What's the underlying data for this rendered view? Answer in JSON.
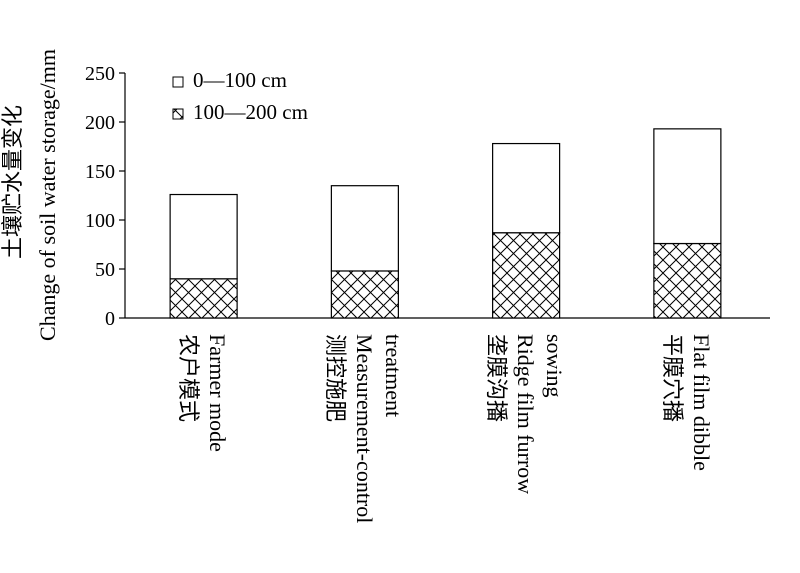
{
  "chart_data": {
    "type": "bar",
    "stacked": true,
    "ylabel_cn": "土壤贮水量变化",
    "ylabel_en": "Change of soil water storage/mm",
    "ylim": [
      0,
      250
    ],
    "yticks": [
      0,
      50,
      100,
      150,
      200,
      250
    ],
    "categories": [
      {
        "cn": "农户模式",
        "en": [
          "Farmer mode"
        ]
      },
      {
        "cn": "测控施肥",
        "en": [
          "Measurement-control",
          "treatment"
        ]
      },
      {
        "cn": "垄膜沟播",
        "en": [
          "Ridge film furrow",
          "sowing"
        ]
      },
      {
        "cn": "平膜穴播",
        "en": [
          "Flat film dibble"
        ]
      }
    ],
    "series": [
      {
        "name": "100—200 cm",
        "values": [
          40,
          48,
          87,
          76
        ],
        "pattern": "crosshatch"
      },
      {
        "name": "0—100 cm",
        "values": [
          86,
          87,
          91,
          117
        ],
        "pattern": "blank"
      }
    ],
    "legend_position": "top-left",
    "grid": false
  }
}
